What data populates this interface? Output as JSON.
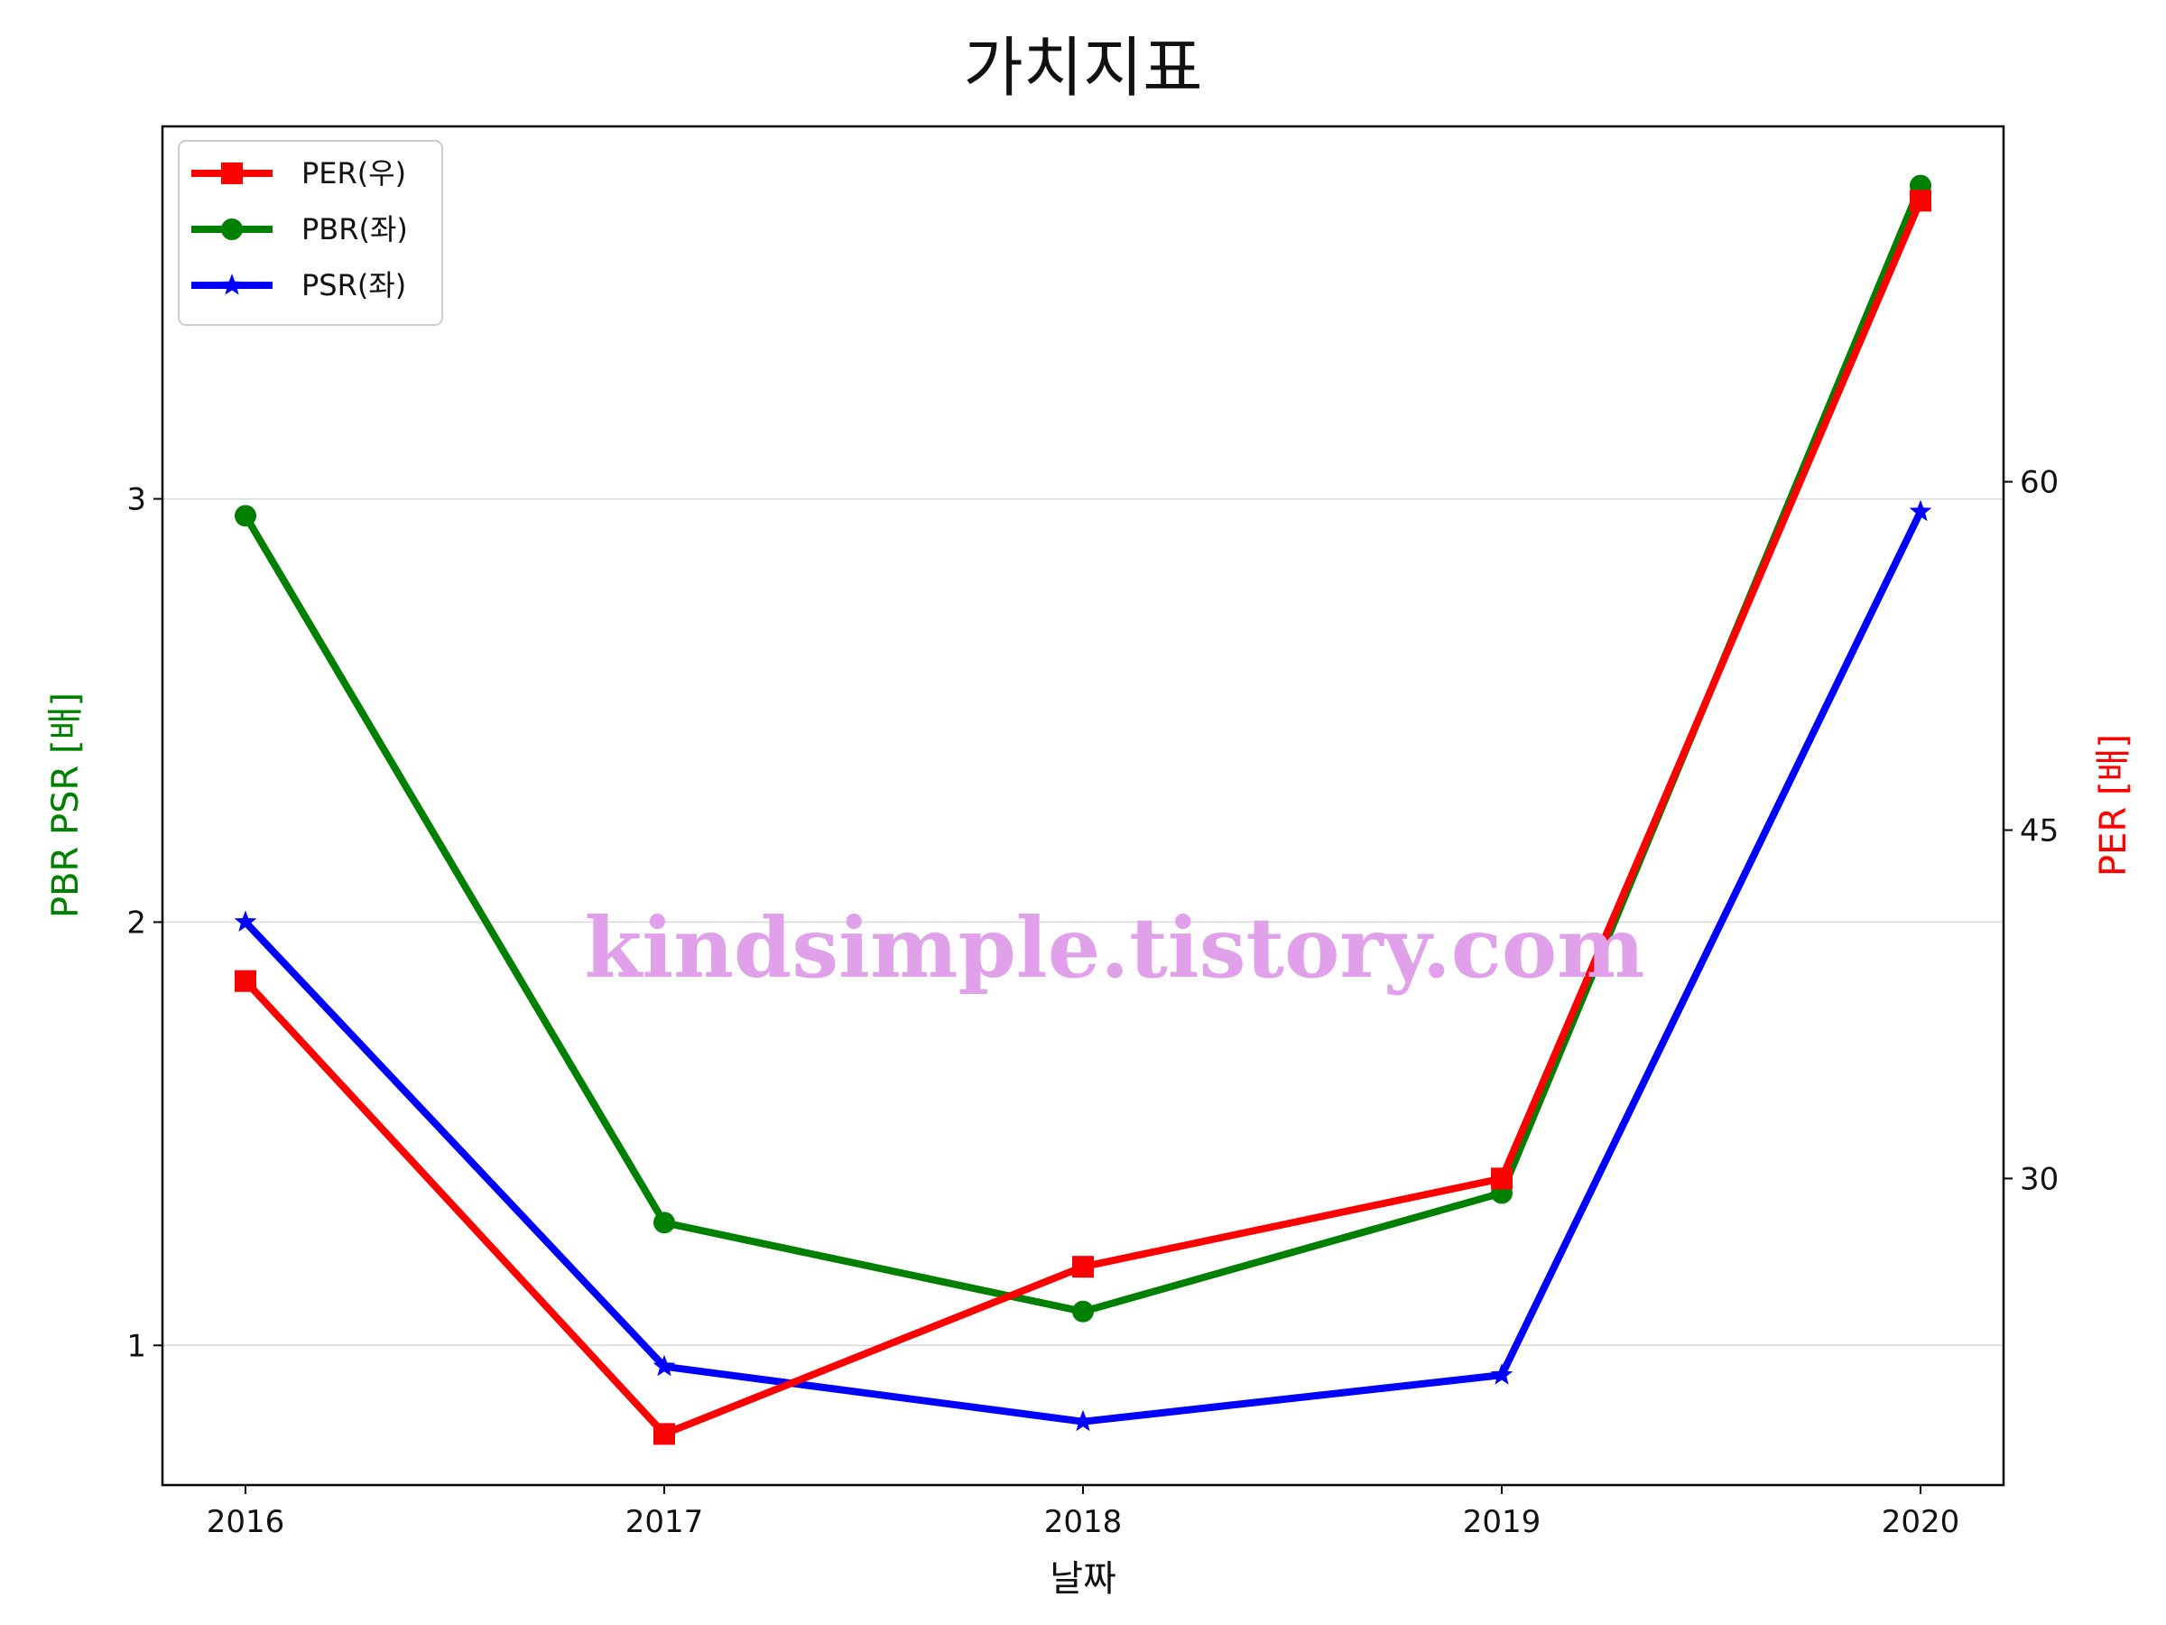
{
  "chart_data": {
    "type": "line",
    "title": "가치지표",
    "xlabel": "날짜",
    "ylabel_left": "PBR PSR [배]",
    "ylabel_right": "PER [배]",
    "ylabel_left_color": "#008000",
    "ylabel_right_color": "#ff0000",
    "x": [
      "2016",
      "2017",
      "2018",
      "2019",
      "2020"
    ],
    "x_ticks": [
      "2016",
      "2017",
      "2018",
      "2019",
      "2020"
    ],
    "ylim_left": [
      0.67,
      3.88
    ],
    "ylim_right": [
      16.8,
      75.3
    ],
    "yticks_left": [
      "1",
      "2",
      "3"
    ],
    "yticks_right": [
      "30",
      "45",
      "60"
    ],
    "grid": "horizontal, left axis",
    "legend_placement": "top-left",
    "series": [
      {
        "name": "PER(우)",
        "axis": "right",
        "color": "#ff0000",
        "marker": "square",
        "values": [
          38.5,
          19.0,
          26.2,
          30.0,
          72.1
        ]
      },
      {
        "name": "PBR(좌)",
        "axis": "left",
        "color": "#008000",
        "marker": "circle",
        "values": [
          2.96,
          1.29,
          1.08,
          1.36,
          3.74
        ]
      },
      {
        "name": "PSR(좌)",
        "axis": "left",
        "color": "#0000ff",
        "marker": "star",
        "values": [
          2.0,
          0.95,
          0.82,
          0.93,
          2.97
        ]
      }
    ],
    "annotations": [
      "kindsimple.tistory.com"
    ]
  }
}
